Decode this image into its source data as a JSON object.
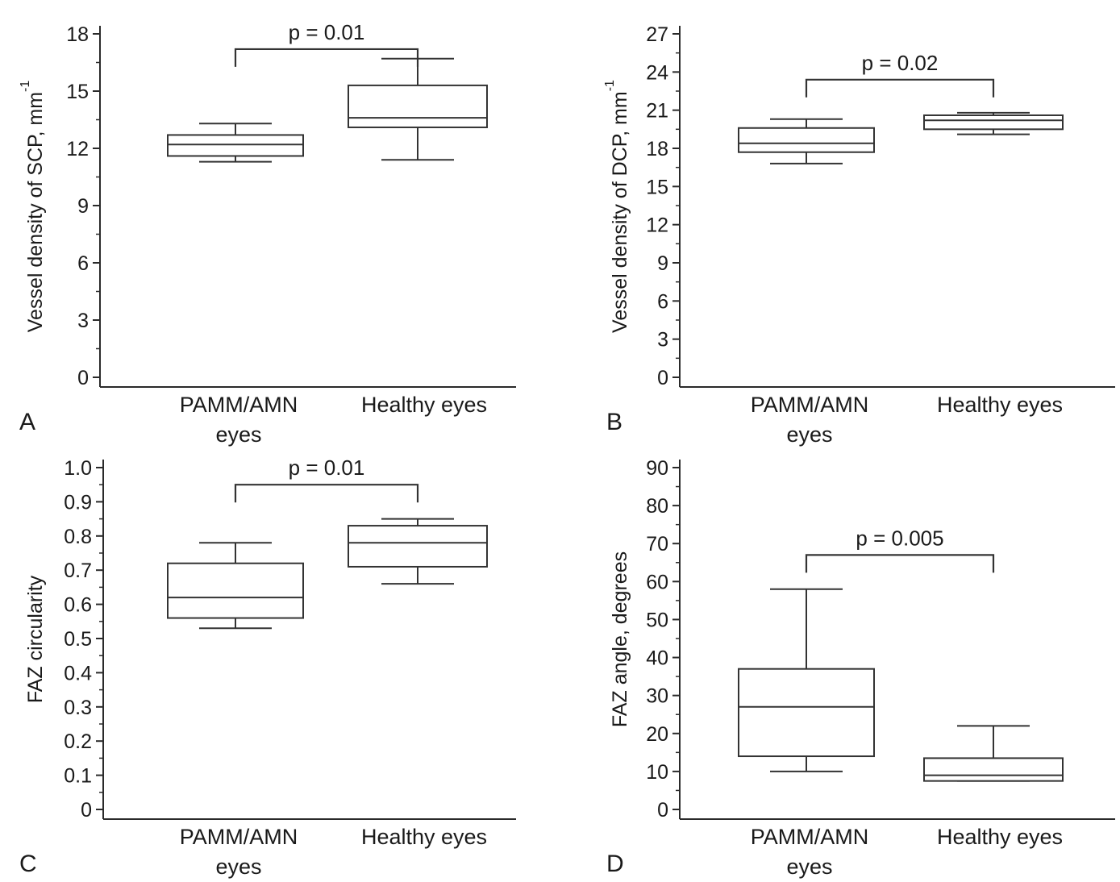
{
  "chart_data": [
    {
      "type": "box",
      "panel_letter": "A",
      "ylabel": "Vessel density of SCP, mm",
      "ylabel_superscript": "-1",
      "ylim": [
        0,
        18
      ],
      "yticks": [
        "0",
        "3",
        "6",
        "9",
        "12",
        "15",
        "18"
      ],
      "categories": [
        "PAMM/AMN\neyes",
        "Healthy eyes"
      ],
      "boxes": [
        {
          "min": 11.3,
          "q1": 11.6,
          "median": 12.2,
          "q3": 12.7,
          "max": 13.3
        },
        {
          "min": 11.4,
          "q1": 13.1,
          "median": 13.6,
          "q3": 15.3,
          "max": 16.7
        }
      ],
      "significance": {
        "label": "p = 0.01",
        "y": 17.2
      }
    },
    {
      "type": "box",
      "panel_letter": "B",
      "ylabel": "Vessel density of  DCP, mm",
      "ylabel_superscript": "-1",
      "ylim": [
        0,
        27
      ],
      "yticks": [
        "0",
        "3",
        "6",
        "9",
        "12",
        "15",
        "18",
        "21",
        "24",
        "27"
      ],
      "categories": [
        "PAMM/AMN\neyes",
        "Healthy eyes"
      ],
      "boxes": [
        {
          "min": 16.8,
          "q1": 17.7,
          "median": 18.4,
          "q3": 19.6,
          "max": 20.3
        },
        {
          "min": 19.1,
          "q1": 19.5,
          "median": 20.2,
          "q3": 20.6,
          "max": 20.8
        }
      ],
      "significance": {
        "label": "p = 0.02",
        "y": 23.4
      }
    },
    {
      "type": "box",
      "panel_letter": "C",
      "ylabel": "FAZ circularity",
      "ylabel_superscript": "",
      "ylim": [
        0,
        1.1
      ],
      "yticks": [
        "0",
        "0.1",
        "0.2",
        "0.3",
        "0.4",
        "0.5",
        "0.6",
        "0.7",
        "0.8",
        "0.9",
        "1.0"
      ],
      "categories": [
        "PAMM/AMN\neyes",
        "Healthy eyes"
      ],
      "boxes": [
        {
          "min": 0.53,
          "q1": 0.56,
          "median": 0.62,
          "q3": 0.72,
          "max": 0.78
        },
        {
          "min": 0.66,
          "q1": 0.71,
          "median": 0.78,
          "q3": 0.83,
          "max": 0.85
        }
      ],
      "significance": {
        "label": "p = 0.01",
        "y": 0.95
      }
    },
    {
      "type": "box",
      "panel_letter": "D",
      "ylabel": "FAZ angle, degrees",
      "ylabel_superscript": "",
      "ylim": [
        0,
        90
      ],
      "yticks": [
        "0",
        "10",
        "20",
        "30",
        "40",
        "50",
        "60",
        "70",
        "80",
        "90"
      ],
      "categories": [
        "PAMM/AMN\neyes",
        "Healthy eyes"
      ],
      "boxes": [
        {
          "min": 10,
          "q1": 14,
          "median": 27,
          "q3": 37,
          "max": 58
        },
        {
          "min": 7.5,
          "q1": 7.5,
          "median": 9,
          "q3": 13.5,
          "max": 22
        }
      ],
      "significance": {
        "label": "p = 0.005",
        "y": 67
      }
    }
  ]
}
